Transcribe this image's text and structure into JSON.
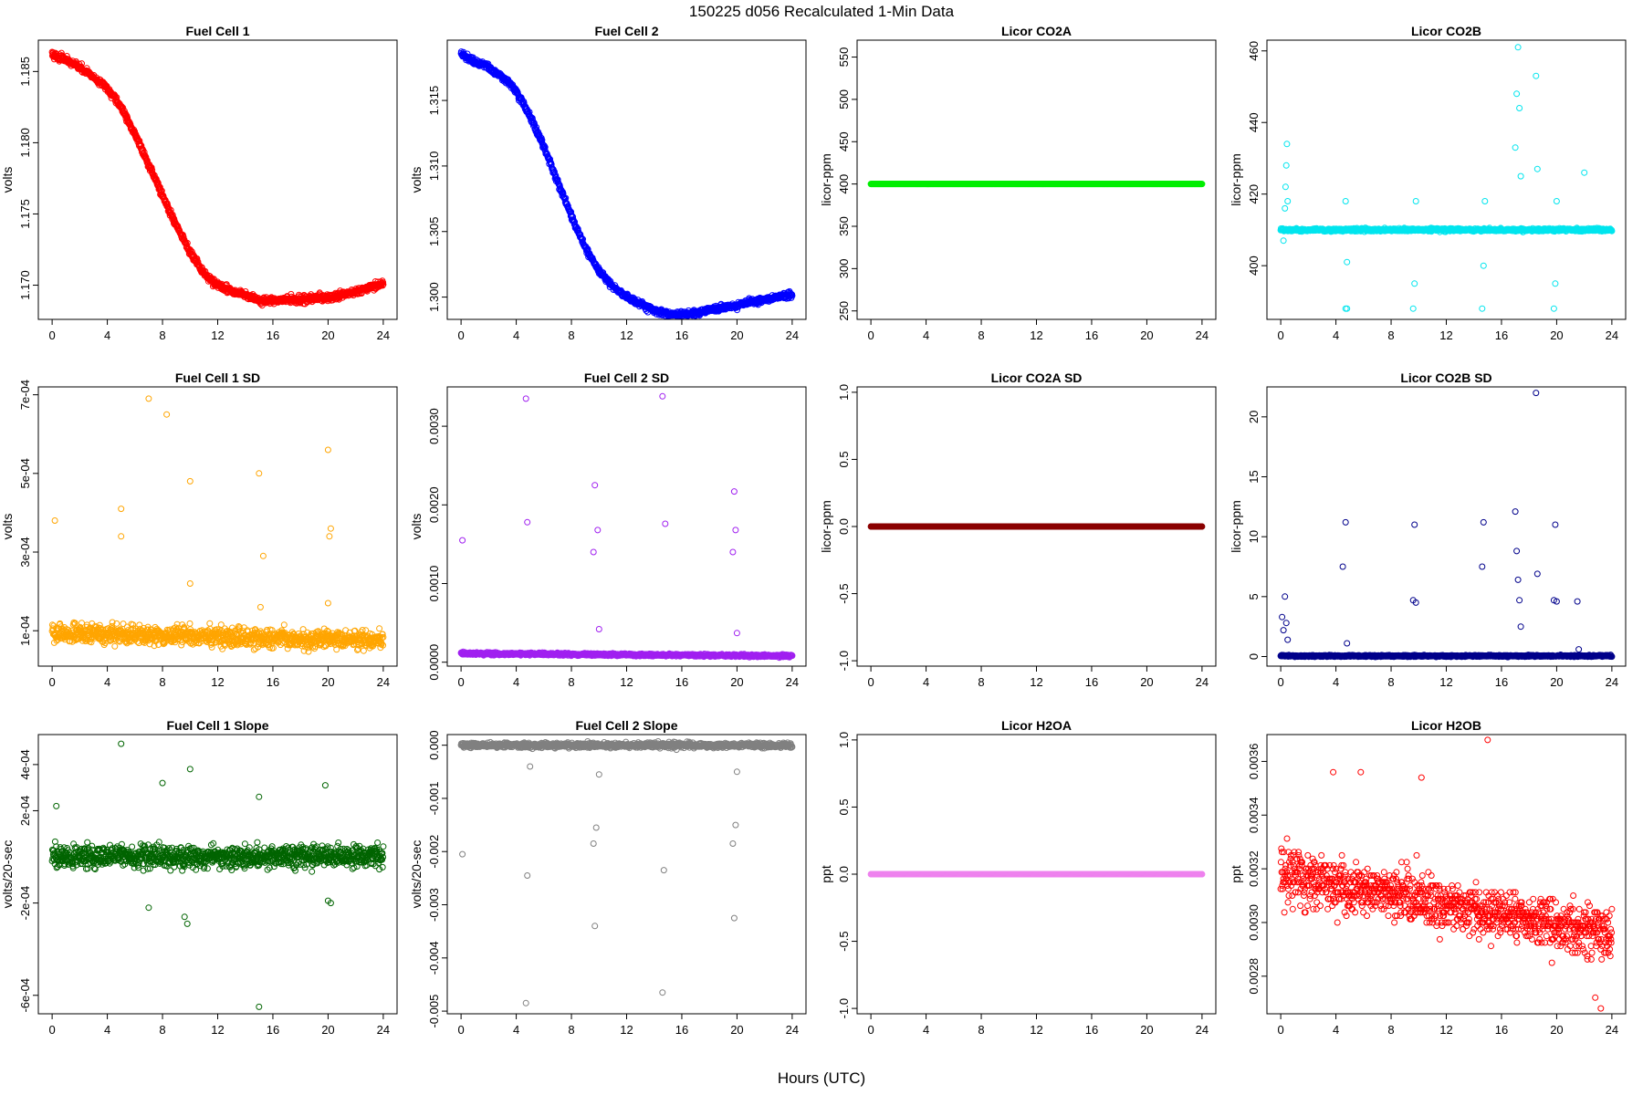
{
  "figure": {
    "title": "150225   d056   Recalculated 1-Min Data",
    "xlabel": "Hours (UTC)"
  },
  "chart_data": [
    {
      "type": "scatter",
      "panel": "r0c0",
      "title": "Fuel Cell 1",
      "ylabel": "volts",
      "color": "#ff0000",
      "xlim": [
        -1,
        25
      ],
      "ylim": [
        1.1676,
        1.1872
      ],
      "yticks": [
        1.17,
        1.175,
        1.18,
        1.185
      ],
      "yticklabels": [
        "1.170",
        "1.175",
        "1.180",
        "1.185"
      ],
      "series": [
        {
          "x": [
            0,
            1,
            2,
            3,
            4,
            5,
            6,
            7,
            8,
            9,
            10,
            11,
            12,
            13,
            14,
            15,
            16,
            17,
            18,
            19,
            20,
            21,
            22,
            23,
            24
          ],
          "y": [
            1.1862,
            1.1858,
            1.1853,
            1.1846,
            1.1838,
            1.1825,
            1.1806,
            1.1785,
            1.1763,
            1.1742,
            1.1723,
            1.1708,
            1.17,
            1.1696,
            1.1693,
            1.1689,
            1.1689,
            1.169,
            1.169,
            1.1691,
            1.1691,
            1.1693,
            1.1695,
            1.1698,
            1.1701
          ]
        }
      ],
      "noise": 0.0003
    },
    {
      "type": "scatter",
      "panel": "r0c1",
      "title": "Fuel Cell 2",
      "ylabel": "volts",
      "color": "#0000ff",
      "xlim": [
        -1,
        25
      ],
      "ylim": [
        1.2983,
        1.3196
      ],
      "yticks": [
        1.3,
        1.305,
        1.31,
        1.315
      ],
      "yticklabels": [
        "1.300",
        "1.305",
        "1.310",
        "1.315"
      ],
      "series": [
        {
          "x": [
            0,
            1,
            2,
            3,
            4,
            5,
            6,
            7,
            8,
            9,
            10,
            11,
            12,
            13,
            14,
            15,
            16,
            17,
            18,
            19,
            20,
            21,
            22,
            23,
            24
          ],
          "y": [
            1.3185,
            1.318,
            1.3175,
            1.3168,
            1.3157,
            1.3138,
            1.3115,
            1.3088,
            1.3062,
            1.3038,
            1.302,
            1.3008,
            1.3,
            1.2995,
            1.299,
            1.2987,
            1.2987,
            1.2988,
            1.299,
            1.2992,
            1.2994,
            1.2996,
            1.2998,
            1.3,
            1.3002
          ]
        }
      ],
      "noise": 0.0003
    },
    {
      "type": "scatter",
      "panel": "r0c2",
      "title": "Licor CO2A",
      "ylabel": "licor-ppm",
      "color": "#00ee00",
      "xlim": [
        -1,
        25
      ],
      "ylim": [
        240,
        570
      ],
      "yticks": [
        250,
        300,
        350,
        400,
        450,
        500,
        550
      ],
      "yticklabels": [
        "250",
        "300",
        "350",
        "400",
        "450",
        "500",
        "550"
      ],
      "series": [
        {
          "x": [
            0,
            24
          ],
          "y": [
            400,
            400
          ]
        }
      ],
      "noise": 0
    },
    {
      "type": "scatter",
      "panel": "r0c3",
      "title": "Licor CO2B",
      "ylabel": "licor-ppm",
      "color": "#00e5ee",
      "xlim": [
        -1,
        25
      ],
      "ylim": [
        385,
        463
      ],
      "yticks": [
        400,
        420,
        440,
        460
      ],
      "yticklabels": [
        "400",
        "420",
        "440",
        "460"
      ],
      "series": [
        {
          "x": [
            0,
            24
          ],
          "y": [
            410,
            410
          ]
        }
      ],
      "noise": 0.5,
      "outliers": [
        [
          0.2,
          407
        ],
        [
          0.3,
          416
        ],
        [
          0.35,
          422
        ],
        [
          0.4,
          428
        ],
        [
          0.45,
          434
        ],
        [
          0.5,
          418
        ],
        [
          4.7,
          418
        ],
        [
          4.8,
          401
        ],
        [
          4.7,
          388
        ],
        [
          4.8,
          388
        ],
        [
          9.6,
          388
        ],
        [
          9.7,
          395
        ],
        [
          9.8,
          418
        ],
        [
          14.6,
          388
        ],
        [
          14.7,
          400
        ],
        [
          14.8,
          418
        ],
        [
          17.0,
          433
        ],
        [
          17.1,
          448
        ],
        [
          17.2,
          461
        ],
        [
          17.3,
          444
        ],
        [
          17.4,
          425
        ],
        [
          18.5,
          453
        ],
        [
          18.6,
          427
        ],
        [
          19.8,
          388
        ],
        [
          19.9,
          395
        ],
        [
          20.0,
          418
        ],
        [
          22.0,
          426
        ]
      ]
    },
    {
      "type": "scatter",
      "panel": "r1c0",
      "title": "Fuel Cell 1 SD",
      "ylabel": "volts",
      "color": "#ffa500",
      "xlim": [
        -1,
        25
      ],
      "ylim": [
        1e-05,
        0.00072
      ],
      "yticks": [
        0.0001,
        0.0003,
        0.0005,
        0.0007
      ],
      "yticklabels": [
        "1e-04",
        "3e-04",
        "5e-04",
        "7e-04"
      ],
      "series": [
        {
          "x": [
            0,
            24
          ],
          "y": [
            9.5e-05,
            7.5e-05
          ]
        }
      ],
      "noise": 3e-05,
      "outliers": [
        [
          0.2,
          0.00038
        ],
        [
          5.0,
          0.00041
        ],
        [
          5.0,
          0.00034
        ],
        [
          7.0,
          0.00069
        ],
        [
          8.3,
          0.00065
        ],
        [
          10.0,
          0.00048
        ],
        [
          10.0,
          0.00022
        ],
        [
          15.0,
          0.0005
        ],
        [
          15.3,
          0.00029
        ],
        [
          15.1,
          0.00016
        ],
        [
          20.0,
          0.00056
        ],
        [
          20.2,
          0.00036
        ],
        [
          20.1,
          0.00034
        ],
        [
          20.0,
          0.00017
        ]
      ]
    },
    {
      "type": "scatter",
      "panel": "r1c1",
      "title": "Fuel Cell 2 SD",
      "ylabel": "volts",
      "color": "#a020f0",
      "xlim": [
        -1,
        25
      ],
      "ylim": [
        -5e-05,
        0.0035
      ],
      "yticks": [
        0.0,
        0.001,
        0.002,
        0.003
      ],
      "yticklabels": [
        "0.0000",
        "0.0010",
        "0.0020",
        "0.0030"
      ],
      "series": [
        {
          "x": [
            0,
            24
          ],
          "y": [
            0.00011,
            8e-05
          ]
        }
      ],
      "noise": 2e-05,
      "outliers": [
        [
          0.1,
          0.00155
        ],
        [
          4.7,
          0.00335
        ],
        [
          4.8,
          0.00178
        ],
        [
          9.6,
          0.0014
        ],
        [
          9.7,
          0.00225
        ],
        [
          9.9,
          0.00168
        ],
        [
          10.0,
          0.00042
        ],
        [
          14.6,
          0.00338
        ],
        [
          14.8,
          0.00176
        ],
        [
          19.7,
          0.0014
        ],
        [
          19.8,
          0.00217
        ],
        [
          19.9,
          0.00168
        ],
        [
          20.0,
          0.00037
        ]
      ]
    },
    {
      "type": "scatter",
      "panel": "r1c2",
      "title": "Licor CO2A SD",
      "ylabel": "licor-ppm",
      "color": "#8b0000",
      "xlim": [
        -1,
        25
      ],
      "ylim": [
        -1.04,
        1.04
      ],
      "yticks": [
        -1.0,
        -0.5,
        0.0,
        0.5,
        1.0
      ],
      "yticklabels": [
        "-1.0",
        "-0.5",
        "0.0",
        "0.5",
        "1.0"
      ],
      "series": [
        {
          "x": [
            0,
            24
          ],
          "y": [
            0,
            0
          ]
        }
      ],
      "noise": 0
    },
    {
      "type": "scatter",
      "panel": "r1c3",
      "title": "Licor CO2B SD",
      "ylabel": "licor-ppm",
      "color": "#00008b",
      "xlim": [
        -1,
        25
      ],
      "ylim": [
        -0.8,
        22.5
      ],
      "yticks": [
        0,
        5,
        10,
        15,
        20
      ],
      "yticklabels": [
        "0",
        "5",
        "10",
        "15",
        "20"
      ],
      "series": [
        {
          "x": [
            0,
            24
          ],
          "y": [
            0.05,
            0.05
          ]
        }
      ],
      "noise": 0.08,
      "outliers": [
        [
          0.1,
          3.3
        ],
        [
          0.2,
          2.2
        ],
        [
          0.3,
          5.0
        ],
        [
          0.4,
          2.8
        ],
        [
          0.5,
          1.4
        ],
        [
          4.5,
          7.5
        ],
        [
          4.7,
          11.2
        ],
        [
          4.8,
          1.1
        ],
        [
          9.6,
          4.7
        ],
        [
          9.7,
          11.0
        ],
        [
          9.8,
          4.5
        ],
        [
          14.6,
          7.5
        ],
        [
          14.7,
          11.2
        ],
        [
          17.0,
          12.1
        ],
        [
          17.1,
          8.8
        ],
        [
          17.2,
          6.4
        ],
        [
          17.3,
          4.7
        ],
        [
          17.4,
          2.5
        ],
        [
          18.5,
          22.0
        ],
        [
          18.6,
          6.9
        ],
        [
          19.8,
          4.7
        ],
        [
          19.9,
          11.0
        ],
        [
          20.0,
          4.6
        ],
        [
          21.5,
          4.6
        ],
        [
          21.6,
          0.6
        ]
      ]
    },
    {
      "type": "scatter",
      "panel": "r2c0",
      "title": "Fuel Cell 1 Slope",
      "ylabel": "volts/20-sec",
      "color": "#006400",
      "xlim": [
        -1,
        25
      ],
      "ylim": [
        -0.00068,
        0.00053
      ],
      "yticks": [
        -0.0006,
        -0.0002,
        0.0002,
        0.0004
      ],
      "yticklabels": [
        "-6e-04",
        "-2e-04",
        "2e-04",
        "4e-04"
      ],
      "series": [
        {
          "x": [
            0,
            24
          ],
          "y": [
            0.0,
            0.0
          ]
        }
      ],
      "noise": 6e-05,
      "outliers": [
        [
          0.3,
          0.00022
        ],
        [
          5.0,
          0.00049
        ],
        [
          7.0,
          -0.00022
        ],
        [
          8.0,
          0.00032
        ],
        [
          10.0,
          0.00038
        ],
        [
          9.6,
          -0.00026
        ],
        [
          9.8,
          -0.00029
        ],
        [
          15.0,
          -0.00065
        ],
        [
          15.0,
          0.00026
        ],
        [
          19.8,
          0.00031
        ],
        [
          20.0,
          -0.00019
        ],
        [
          20.2,
          -0.0002
        ]
      ]
    },
    {
      "type": "scatter",
      "panel": "r2c1",
      "title": "Fuel Cell 2 Slope",
      "ylabel": "volts/20-sec",
      "color": "#808080",
      "xlim": [
        -1,
        25
      ],
      "ylim": [
        -0.00505,
        0.0002
      ],
      "yticks": [
        -0.005,
        -0.004,
        -0.003,
        -0.002,
        -0.001,
        0.0
      ],
      "yticklabels": [
        "-0.005",
        "-0.004",
        "-0.003",
        "-0.002",
        "-0.001",
        "0.000"
      ],
      "series": [
        {
          "x": [
            0,
            24
          ],
          "y": [
            0.0,
            0.0
          ]
        }
      ],
      "noise": 6e-05,
      "outliers": [
        [
          0.1,
          -0.00205
        ],
        [
          4.7,
          -0.00485
        ],
        [
          4.8,
          -0.00245
        ],
        [
          5.0,
          -0.0004
        ],
        [
          9.6,
          -0.00185
        ],
        [
          9.7,
          -0.0034
        ],
        [
          9.8,
          -0.00155
        ],
        [
          10.0,
          -0.00055
        ],
        [
          14.6,
          -0.00465
        ],
        [
          14.7,
          -0.00235
        ],
        [
          19.7,
          -0.00185
        ],
        [
          19.8,
          -0.00325
        ],
        [
          19.9,
          -0.0015
        ],
        [
          20.0,
          -0.0005
        ]
      ]
    },
    {
      "type": "scatter",
      "panel": "r2c2",
      "title": "Licor H2OA",
      "ylabel": "ppt",
      "color": "#ee82ee",
      "xlim": [
        -1,
        25
      ],
      "ylim": [
        -1.04,
        1.04
      ],
      "yticks": [
        -1.0,
        -0.5,
        0.0,
        0.5,
        1.0
      ],
      "yticklabels": [
        "-1.0",
        "-0.5",
        "0.0",
        "0.5",
        "1.0"
      ],
      "series": [
        {
          "x": [
            0,
            24
          ],
          "y": [
            0,
            0
          ]
        }
      ],
      "noise": 0
    },
    {
      "type": "scatter",
      "panel": "r2c3",
      "title": "Licor H2OB",
      "ylabel": "ppt",
      "color": "#ff0000",
      "xlim": [
        -1,
        25
      ],
      "ylim": [
        0.00266,
        0.0037
      ],
      "yticks": [
        0.0028,
        0.003,
        0.0032,
        0.0034,
        0.0036
      ],
      "yticklabels": [
        "0.0028",
        "0.0030",
        "0.0032",
        "0.0034",
        "0.0036"
      ],
      "series": [
        {
          "x": [
            0,
            24
          ],
          "y": [
            0.00318,
            0.00295
          ]
        }
      ],
      "noise": 0.00012,
      "quantize": 1.25e-05,
      "outliers": [
        [
          15.0,
          0.00368
        ],
        [
          3.8,
          0.00356
        ],
        [
          5.8,
          0.00356
        ],
        [
          10.2,
          0.00354
        ],
        [
          23.2,
          0.00268
        ],
        [
          22.8,
          0.00272
        ]
      ]
    }
  ]
}
